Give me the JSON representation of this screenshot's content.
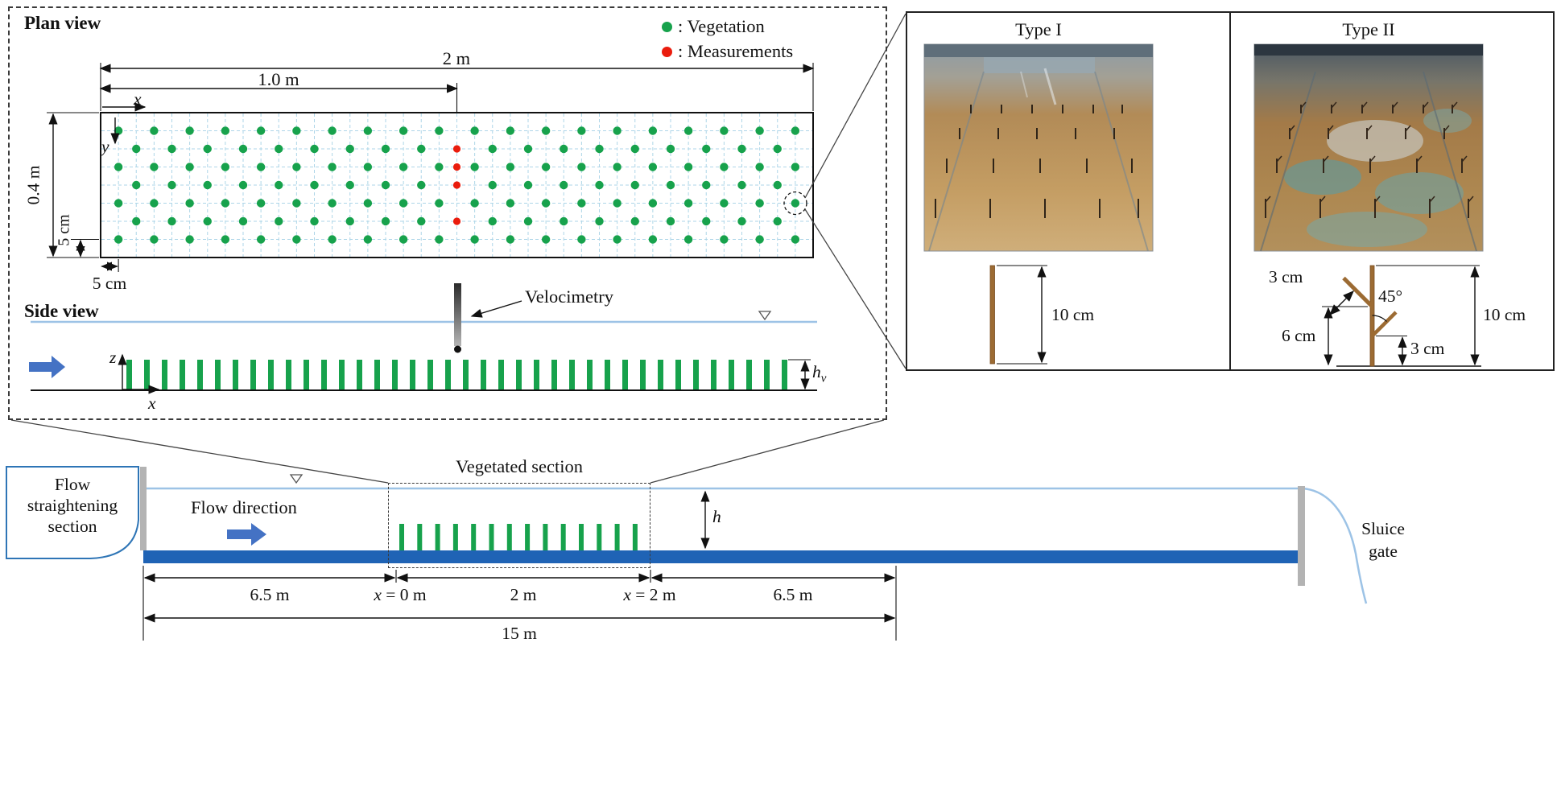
{
  "figure": {
    "plan": {
      "title": "Plan view",
      "legend": [
        {
          "icon": "vegetation-dot",
          "label": ": Vegetation"
        },
        {
          "icon": "measurement-dot",
          "label": ": Measurements"
        }
      ],
      "dim_length": "2 m",
      "dim_measure": "1.0 m",
      "dim_width": "0.4 m",
      "dim_row_spacing": "5 cm",
      "dim_col_spacing": "5 cm",
      "axis_x": "x",
      "axis_y": "y",
      "pattern": {
        "cols": 40,
        "rows": 8,
        "stagger": true,
        "measure_col": 20,
        "measure_rows": [
          2,
          3,
          4,
          6
        ]
      }
    },
    "side": {
      "title": "Side view",
      "velocimetry": "Velocimetry",
      "axis_z": "z",
      "axis_x": "x",
      "hv": {
        "base": "h",
        "sub": "v"
      },
      "bar_count": 38
    },
    "types": {
      "one": {
        "title": "Type I",
        "height": "10 cm"
      },
      "two": {
        "title": "Type II",
        "branch_top": "3 cm",
        "angle": "45°",
        "height_mid": "6 cm",
        "height_low": "3 cm",
        "height": "10 cm"
      }
    },
    "flume": {
      "straightening": {
        "l1": "Flow",
        "l2": "straightening",
        "l3": "section"
      },
      "flow_direction": "Flow direction",
      "vegetated": "Vegetated section",
      "depth": "h",
      "sluice": {
        "l1": "Sluice",
        "l2": "gate"
      },
      "dims": {
        "left": "6.5 m",
        "x0": {
          "v": "x",
          "r": " = 0 m"
        },
        "mid": "2 m",
        "x2": {
          "v": "x",
          "r": " = 2 m"
        },
        "right": "6.5 m",
        "total": "15 m"
      },
      "bar_count": 14
    },
    "colors": {
      "vegetation": "#17a24c",
      "measurement": "#ea1c0d",
      "water": "#9dc3e6",
      "bed": "#1f63b5",
      "arrow": "#4472c4",
      "wall": "#b3b3b3",
      "stick": "#9c6b33",
      "grid": "#aed6e8"
    }
  }
}
